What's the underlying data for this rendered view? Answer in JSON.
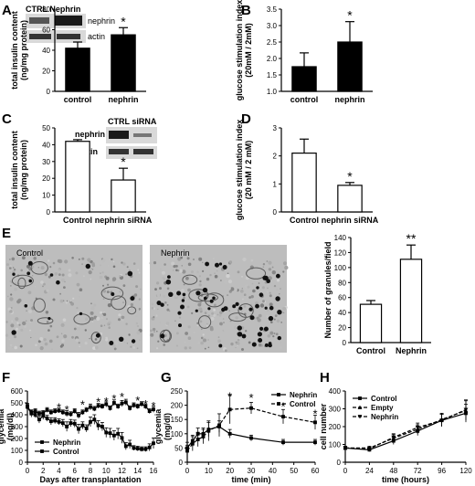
{
  "colors": {
    "black": "#000000",
    "white": "#ffffff",
    "blot_dark": "#1a1a1a",
    "blot_mid": "#555555",
    "blot_bg": "#d9d9d9",
    "em_bg": "#bdbdbd"
  },
  "panel_labels": {
    "A": "A",
    "B": "B",
    "C": "C",
    "D": "D",
    "E": "E",
    "F": "F",
    "G": "G",
    "H": "H"
  },
  "blots": {
    "A": {
      "header": "CTRL  Nephrin",
      "band1": "nephrin",
      "band2": "actin"
    },
    "C": {
      "header": "CTRL  siRNA",
      "band1": "nephrin",
      "band2": "actin"
    }
  },
  "micrographs": {
    "left_label": "Control",
    "right_label": "Nephrin"
  },
  "chart_data": [
    {
      "id": "A",
      "type": "bar",
      "categories": [
        "control",
        "nephrin"
      ],
      "values": [
        42,
        55
      ],
      "errors": [
        6,
        7
      ],
      "fill": [
        "#000000",
        "#000000"
      ],
      "sig": [
        "",
        "*"
      ],
      "ylim": [
        0,
        80
      ],
      "yticks": [
        0,
        20,
        40,
        60,
        80
      ],
      "ylabel": "total insulin content (ng/mg protein)",
      "xlabel": ""
    },
    {
      "id": "B",
      "type": "bar",
      "categories": [
        "control",
        "nephrin"
      ],
      "values": [
        1.75,
        2.5
      ],
      "errors": [
        0.42,
        0.62
      ],
      "fill": [
        "#000000",
        "#000000"
      ],
      "sig": [
        "",
        "*"
      ],
      "ylim": [
        1.0,
        3.5
      ],
      "yticks": [
        1.0,
        1.5,
        2.0,
        2.5,
        3.0,
        3.5
      ],
      "ylabel": "glucose stimulation index (20mM / 2mM)",
      "xlabel": ""
    },
    {
      "id": "C",
      "type": "bar",
      "categories": [
        "Control",
        "nephrin siRNA"
      ],
      "values": [
        42,
        19
      ],
      "errors": [
        1,
        7
      ],
      "fill": [
        "#ffffff",
        "#ffffff"
      ],
      "sig": [
        "",
        "*"
      ],
      "ylim": [
        0,
        50
      ],
      "yticks": [
        0,
        10,
        20,
        30,
        40,
        50
      ],
      "ylabel": "total insulin content (ng/mg protein)",
      "xlabel": ""
    },
    {
      "id": "D",
      "type": "bar",
      "categories": [
        "Control",
        "nephrin siRNA"
      ],
      "values": [
        2.1,
        0.95
      ],
      "errors": [
        0.5,
        0.1
      ],
      "fill": [
        "#ffffff",
        "#ffffff"
      ],
      "sig": [
        "",
        "*"
      ],
      "ylim": [
        0,
        3
      ],
      "yticks": [
        0,
        1,
        2,
        3
      ],
      "ylabel": "glucose stimulation index (20 mM / 2 mM)",
      "xlabel": ""
    },
    {
      "id": "E",
      "type": "bar",
      "categories": [
        "Control",
        "Nephrin"
      ],
      "values": [
        51,
        111
      ],
      "errors": [
        5,
        19
      ],
      "fill": [
        "#ffffff",
        "#ffffff"
      ],
      "sig": [
        "",
        "**"
      ],
      "ylim": [
        0,
        140
      ],
      "yticks": [
        0,
        20,
        40,
        60,
        80,
        100,
        120,
        140
      ],
      "ylabel": "Number of granules/field",
      "xlabel": ""
    },
    {
      "id": "F",
      "type": "line",
      "ylabel": "glycemia (mg/dl)",
      "xlabel": "Days after transplantation",
      "xlim": [
        0,
        16
      ],
      "xticks": [
        0,
        2,
        4,
        6,
        8,
        10,
        12,
        14,
        16
      ],
      "ylim": [
        0,
        600
      ],
      "yticks": [
        0,
        100,
        200,
        300,
        400,
        500,
        600
      ],
      "legend": "bottom-left",
      "stars_text": "*",
      "star_x": [
        4,
        5,
        7,
        9,
        10,
        11,
        12,
        14,
        15,
        16
      ],
      "star_y": [
        475,
        455,
        495,
        520,
        525,
        545,
        560,
        530,
        500,
        485
      ],
      "series": [
        {
          "name": "Nephrin",
          "marker": "square",
          "dash": false,
          "x": [
            0,
            0.5,
            1,
            1.5,
            2,
            2.5,
            3,
            3.5,
            4,
            4.5,
            5,
            5.5,
            6,
            6.5,
            7,
            7.5,
            8,
            8.5,
            9,
            9.5,
            10,
            10.5,
            11,
            11.5,
            12,
            12.5,
            13,
            13.5,
            14,
            14.5,
            15,
            15.5,
            16
          ],
          "y": [
            465,
            410,
            400,
            360,
            390,
            370,
            345,
            350,
            340,
            330,
            300,
            330,
            325,
            280,
            310,
            285,
            340,
            360,
            310,
            300,
            250,
            245,
            225,
            240,
            205,
            135,
            150,
            120,
            115,
            110,
            110,
            125,
            160
          ],
          "err": [
            30,
            30,
            25,
            30,
            30,
            25,
            30,
            25,
            25,
            30,
            40,
            30,
            30,
            40,
            30,
            30,
            40,
            40,
            40,
            35,
            40,
            40,
            40,
            45,
            45,
            30,
            35,
            20,
            20,
            20,
            20,
            30,
            45
          ]
        },
        {
          "name": "Control",
          "marker": "square",
          "dash": false,
          "x": [
            0,
            0.5,
            1,
            1.5,
            2,
            2.5,
            3,
            3.5,
            4,
            4.5,
            5,
            5.5,
            6,
            6.5,
            7,
            7.5,
            8,
            8.5,
            9,
            9.5,
            10,
            10.5,
            11,
            11.5,
            12,
            12.5,
            13,
            13.5,
            14,
            14.5,
            15,
            15.5,
            16
          ],
          "y": [
            470,
            420,
            430,
            410,
            415,
            440,
            420,
            430,
            435,
            420,
            410,
            405,
            430,
            395,
            420,
            440,
            465,
            450,
            475,
            470,
            490,
            455,
            500,
            470,
            495,
            505,
            455,
            480,
            470,
            490,
            470,
            430,
            445
          ],
          "err": [
            20,
            20,
            20,
            20,
            20,
            20,
            20,
            20,
            20,
            20,
            25,
            20,
            20,
            25,
            20,
            20,
            25,
            20,
            20,
            20,
            25,
            20,
            25,
            20,
            25,
            25,
            20,
            20,
            20,
            20,
            20,
            20,
            25
          ]
        }
      ]
    },
    {
      "id": "G",
      "type": "line",
      "ylabel": "glycemia (mg/dl)",
      "xlabel": "time (min)",
      "xlim": [
        0,
        60
      ],
      "xticks": [
        0,
        10,
        20,
        30,
        40,
        50,
        60
      ],
      "ylim": [
        0,
        250
      ],
      "yticks": [
        0,
        50,
        100,
        150,
        200,
        250
      ],
      "legend": "top-right",
      "stars_text": "*",
      "star_x": [
        20,
        30,
        45,
        60
      ],
      "star_y": [
        235,
        230,
        200,
        175
      ],
      "series": [
        {
          "name": "Nephrin",
          "marker": "square",
          "dash": false,
          "x": [
            0,
            2.5,
            5,
            7.5,
            10,
            15,
            20,
            30,
            45,
            60
          ],
          "y": [
            50,
            75,
            100,
            100,
            115,
            125,
            100,
            85,
            70,
            70
          ],
          "err": [
            20,
            20,
            20,
            20,
            25,
            20,
            15,
            10,
            10,
            10
          ]
        },
        {
          "name": "Control",
          "marker": "square",
          "dash": true,
          "x": [
            0,
            2.5,
            5,
            7.5,
            10,
            15,
            20,
            30,
            45,
            60
          ],
          "y": [
            40,
            65,
            80,
            90,
            110,
            130,
            185,
            190,
            160,
            140
          ],
          "err": [
            20,
            25,
            25,
            25,
            35,
            40,
            50,
            20,
            25,
            25
          ]
        }
      ]
    },
    {
      "id": "H",
      "type": "line",
      "ylabel": "cell number",
      "xlabel": "time (hours)",
      "xlim": [
        0,
        120
      ],
      "xticks": [
        0,
        24,
        48,
        72,
        96,
        120
      ],
      "ylim": [
        0,
        400
      ],
      "yticks": [
        0,
        100,
        200,
        300,
        400
      ],
      "legend": "top-left",
      "stars_text": "",
      "star_x": [],
      "star_y": [],
      "series": [
        {
          "name": "Control",
          "marker": "square",
          "dash": false,
          "x": [
            0,
            24,
            48,
            72,
            96,
            120
          ],
          "y": [
            80,
            70,
            120,
            175,
            235,
            275
          ],
          "err": [
            10,
            10,
            20,
            25,
            35,
            50
          ]
        },
        {
          "name": "Empty",
          "marker": "triangle",
          "dash": true,
          "x": [
            0,
            24,
            48,
            72,
            96,
            120
          ],
          "y": [
            80,
            80,
            135,
            185,
            240,
            290
          ],
          "err": [
            10,
            10,
            20,
            25,
            35,
            55
          ]
        },
        {
          "name": "Nephrin",
          "marker": "triangle-down",
          "dash": true,
          "x": [
            0,
            24,
            48,
            72,
            96,
            120
          ],
          "y": [
            80,
            75,
            140,
            195,
            235,
            295
          ],
          "err": [
            10,
            10,
            20,
            25,
            35,
            55
          ]
        }
      ]
    }
  ]
}
